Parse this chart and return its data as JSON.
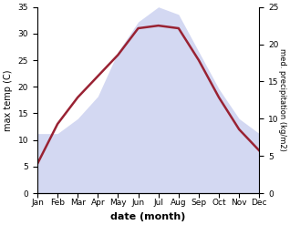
{
  "months": [
    "Jan",
    "Feb",
    "Mar",
    "Apr",
    "May",
    "Jun",
    "Jul",
    "Aug",
    "Sep",
    "Oct",
    "Nov",
    "Dec"
  ],
  "temp": [
    5.5,
    13.0,
    18.0,
    22.0,
    26.0,
    31.0,
    31.5,
    31.0,
    25.0,
    18.0,
    12.0,
    8.0
  ],
  "precip": [
    8,
    8,
    10,
    13,
    19,
    23,
    25,
    24,
    19,
    14,
    10,
    8
  ],
  "temp_color": "#992233",
  "precip_color": "#b0b8e8",
  "ylim_temp": [
    0,
    35
  ],
  "ylim_precip": [
    0,
    25
  ],
  "yticks_temp": [
    0,
    5,
    10,
    15,
    20,
    25,
    30,
    35
  ],
  "yticks_precip": [
    0,
    5,
    10,
    15,
    20,
    25
  ],
  "ylabel_left": "max temp (C)",
  "ylabel_right": "med. precipitation (kg/m2)",
  "xlabel": "date (month)",
  "temp_lw": 1.8,
  "precip_alpha": 0.55,
  "axis_fontsize": 7,
  "xlabel_fontsize": 8,
  "ylabel_right_fontsize": 6,
  "tick_fontsize": 6.5
}
